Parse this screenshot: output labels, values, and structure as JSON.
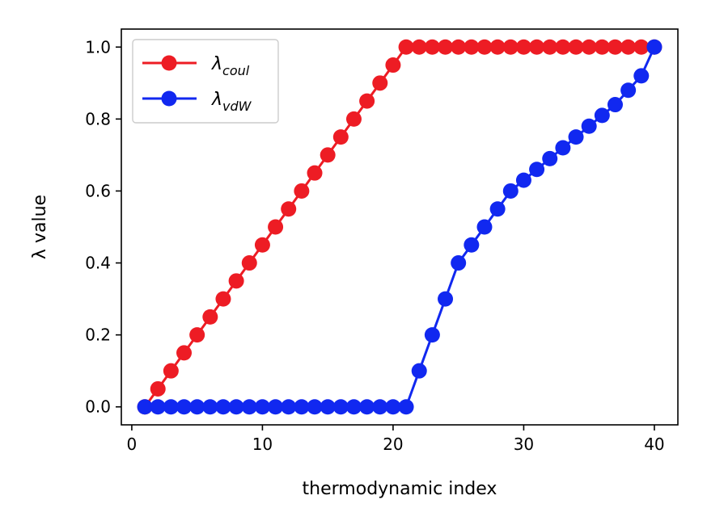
{
  "chart_data": {
    "type": "line",
    "xlabel": "thermodynamic index",
    "ylabel": "λ value",
    "xlim": [
      -0.8,
      41.8
    ],
    "ylim": [
      -0.05,
      1.05
    ],
    "xticks": [
      0,
      10,
      20,
      30,
      40
    ],
    "xtick_labels": [
      "0",
      "10",
      "20",
      "30",
      "40"
    ],
    "yticks": [
      0.0,
      0.2,
      0.4,
      0.6,
      0.8,
      1.0
    ],
    "ytick_labels": [
      "0.0",
      "0.2",
      "0.4",
      "0.6",
      "0.8",
      "1.0"
    ],
    "grid": false,
    "legend_position": "top-left",
    "x": [
      1,
      2,
      3,
      4,
      5,
      6,
      7,
      8,
      9,
      10,
      11,
      12,
      13,
      14,
      15,
      16,
      17,
      18,
      19,
      20,
      21,
      22,
      23,
      24,
      25,
      26,
      27,
      28,
      29,
      30,
      31,
      32,
      33,
      34,
      35,
      36,
      37,
      38,
      39,
      40
    ],
    "series": [
      {
        "name": "λ",
        "name_subscript": "coul",
        "color": "#ed1c24",
        "marker": "circle",
        "values": [
          0.0,
          0.05,
          0.1,
          0.15,
          0.2,
          0.25,
          0.3,
          0.35,
          0.4,
          0.45,
          0.5,
          0.55,
          0.6,
          0.65,
          0.7,
          0.75,
          0.8,
          0.85,
          0.9,
          0.95,
          1.0,
          1.0,
          1.0,
          1.0,
          1.0,
          1.0,
          1.0,
          1.0,
          1.0,
          1.0,
          1.0,
          1.0,
          1.0,
          1.0,
          1.0,
          1.0,
          1.0,
          1.0,
          1.0,
          1.0
        ]
      },
      {
        "name": "λ",
        "name_subscript": "vdW",
        "color": "#1128f0",
        "marker": "circle",
        "values": [
          0.0,
          0.0,
          0.0,
          0.0,
          0.0,
          0.0,
          0.0,
          0.0,
          0.0,
          0.0,
          0.0,
          0.0,
          0.0,
          0.0,
          0.0,
          0.0,
          0.0,
          0.0,
          0.0,
          0.0,
          0.0,
          0.1,
          0.2,
          0.3,
          0.4,
          0.45,
          0.5,
          0.55,
          0.6,
          0.63,
          0.66,
          0.69,
          0.72,
          0.75,
          0.78,
          0.81,
          0.84,
          0.88,
          0.92,
          1.0
        ]
      }
    ]
  }
}
